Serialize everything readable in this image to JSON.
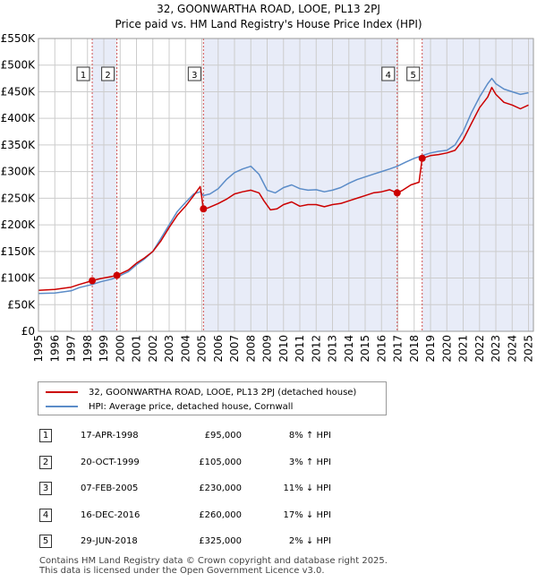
{
  "chart_data": {
    "type": "line",
    "title": "32, GOONWARTHA ROAD, LOOE, PL13 2PJ",
    "subtitle": "Price paid vs. HM Land Registry's House Price Index (HPI)",
    "xlabel": "",
    "ylabel": "",
    "xlim": [
      1995,
      2025.3
    ],
    "ylim": [
      0,
      550000
    ],
    "y_ticks": [
      {
        "value": 0,
        "label": "£0"
      },
      {
        "value": 50000,
        "label": "£50K"
      },
      {
        "value": 100000,
        "label": "£100K"
      },
      {
        "value": 150000,
        "label": "£150K"
      },
      {
        "value": 200000,
        "label": "£200K"
      },
      {
        "value": 250000,
        "label": "£250K"
      },
      {
        "value": 300000,
        "label": "£300K"
      },
      {
        "value": 350000,
        "label": "£350K"
      },
      {
        "value": 400000,
        "label": "£400K"
      },
      {
        "value": 450000,
        "label": "£450K"
      },
      {
        "value": 500000,
        "label": "£500K"
      },
      {
        "value": 550000,
        "label": "£550K"
      }
    ],
    "x_ticks": [
      "1995",
      "1996",
      "1997",
      "1998",
      "1999",
      "2000",
      "2001",
      "2002",
      "2003",
      "2004",
      "2005",
      "2006",
      "2007",
      "2008",
      "2009",
      "2010",
      "2011",
      "2012",
      "2013",
      "2014",
      "2015",
      "2016",
      "2017",
      "2018",
      "2019",
      "2020",
      "2021",
      "2022",
      "2023",
      "2024",
      "2025"
    ],
    "shaded_periods": [
      [
        1998.29,
        1999.8
      ],
      [
        2005.1,
        2016.96
      ],
      [
        2018.49,
        2025.3
      ]
    ],
    "series": [
      {
        "name": "32, GOONWARTHA ROAD, LOOE, PL13 2PJ (detached house)",
        "color": "#cc0000",
        "points": [
          [
            1995,
            77000
          ],
          [
            1996,
            78500
          ],
          [
            1997,
            83000
          ],
          [
            1997.5,
            88000
          ],
          [
            1998.29,
            95000
          ],
          [
            1998.8,
            99000
          ],
          [
            1999.5,
            103000
          ],
          [
            1999.8,
            105000
          ],
          [
            2000.5,
            115000
          ],
          [
            2001,
            128000
          ],
          [
            2001.5,
            138000
          ],
          [
            2002,
            150000
          ],
          [
            2002.5,
            170000
          ],
          [
            2003,
            195000
          ],
          [
            2003.5,
            218000
          ],
          [
            2004,
            235000
          ],
          [
            2004.5,
            255000
          ],
          [
            2004.9,
            272000
          ],
          [
            2005.1,
            230000
          ],
          [
            2005.4,
            232000
          ],
          [
            2006,
            240000
          ],
          [
            2006.5,
            248000
          ],
          [
            2007,
            258000
          ],
          [
            2007.5,
            262000
          ],
          [
            2008,
            265000
          ],
          [
            2008.5,
            260000
          ],
          [
            2008.8,
            245000
          ],
          [
            2009.2,
            228000
          ],
          [
            2009.6,
            230000
          ],
          [
            2010,
            238000
          ],
          [
            2010.5,
            243000
          ],
          [
            2011,
            235000
          ],
          [
            2011.5,
            238000
          ],
          [
            2012,
            238000
          ],
          [
            2012.5,
            234000
          ],
          [
            2013,
            238000
          ],
          [
            2013.5,
            240000
          ],
          [
            2014,
            245000
          ],
          [
            2014.5,
            250000
          ],
          [
            2015,
            255000
          ],
          [
            2015.5,
            260000
          ],
          [
            2016,
            262000
          ],
          [
            2016.5,
            266000
          ],
          [
            2016.96,
            260000
          ],
          [
            2017.3,
            265000
          ],
          [
            2017.8,
            275000
          ],
          [
            2018.3,
            280000
          ],
          [
            2018.49,
            325000
          ],
          [
            2019,
            330000
          ],
          [
            2019.5,
            332000
          ],
          [
            2020,
            335000
          ],
          [
            2020.5,
            340000
          ],
          [
            2021,
            360000
          ],
          [
            2021.5,
            390000
          ],
          [
            2022,
            420000
          ],
          [
            2022.5,
            440000
          ],
          [
            2022.75,
            458000
          ],
          [
            2023,
            445000
          ],
          [
            2023.5,
            430000
          ],
          [
            2024,
            425000
          ],
          [
            2024.5,
            418000
          ],
          [
            2025,
            425000
          ]
        ]
      },
      {
        "name": "HPI: Average price, detached house, Cornwall",
        "color": "#5b8cc8",
        "points": [
          [
            1995,
            71000
          ],
          [
            1996,
            72000
          ],
          [
            1997,
            76000
          ],
          [
            1997.5,
            82000
          ],
          [
            1998.29,
            88000
          ],
          [
            1998.8,
            93000
          ],
          [
            1999.5,
            98000
          ],
          [
            1999.8,
            102000
          ],
          [
            2000.5,
            112000
          ],
          [
            2001,
            125000
          ],
          [
            2001.5,
            136000
          ],
          [
            2002,
            150000
          ],
          [
            2002.5,
            175000
          ],
          [
            2003,
            200000
          ],
          [
            2003.5,
            225000
          ],
          [
            2004,
            242000
          ],
          [
            2004.5,
            258000
          ],
          [
            2004.9,
            262000
          ],
          [
            2005.1,
            255000
          ],
          [
            2005.5,
            258000
          ],
          [
            2006,
            268000
          ],
          [
            2006.5,
            285000
          ],
          [
            2007,
            298000
          ],
          [
            2007.5,
            305000
          ],
          [
            2008,
            310000
          ],
          [
            2008.5,
            295000
          ],
          [
            2009,
            265000
          ],
          [
            2009.5,
            260000
          ],
          [
            2010,
            270000
          ],
          [
            2010.5,
            275000
          ],
          [
            2011,
            268000
          ],
          [
            2011.5,
            265000
          ],
          [
            2012,
            266000
          ],
          [
            2012.5,
            262000
          ],
          [
            2013,
            265000
          ],
          [
            2013.5,
            270000
          ],
          [
            2014,
            278000
          ],
          [
            2014.5,
            285000
          ],
          [
            2015,
            290000
          ],
          [
            2015.5,
            295000
          ],
          [
            2016,
            300000
          ],
          [
            2016.5,
            305000
          ],
          [
            2016.96,
            310000
          ],
          [
            2017.5,
            318000
          ],
          [
            2018,
            325000
          ],
          [
            2018.49,
            330000
          ],
          [
            2019,
            335000
          ],
          [
            2019.5,
            338000
          ],
          [
            2020,
            340000
          ],
          [
            2020.5,
            350000
          ],
          [
            2021,
            375000
          ],
          [
            2021.5,
            410000
          ],
          [
            2022,
            440000
          ],
          [
            2022.5,
            465000
          ],
          [
            2022.75,
            475000
          ],
          [
            2023,
            465000
          ],
          [
            2023.5,
            455000
          ],
          [
            2024,
            450000
          ],
          [
            2024.5,
            445000
          ],
          [
            2025,
            448000
          ]
        ]
      }
    ],
    "sales": [
      {
        "num": "1",
        "x": 1998.29,
        "price": 95000,
        "date": "17-APR-1998",
        "price_label": "£95,000",
        "hpi": "8% ↑ HPI"
      },
      {
        "num": "2",
        "x": 1999.8,
        "price": 105000,
        "date": "20-OCT-1999",
        "price_label": "£105,000",
        "hpi": "3% ↑ HPI"
      },
      {
        "num": "3",
        "x": 2005.1,
        "price": 230000,
        "date": "07-FEB-2005",
        "price_label": "£230,000",
        "hpi": "11% ↓ HPI"
      },
      {
        "num": "4",
        "x": 2016.96,
        "price": 260000,
        "date": "16-DEC-2016",
        "price_label": "£260,000",
        "hpi": "17% ↓ HPI"
      },
      {
        "num": "5",
        "x": 2018.49,
        "price": 325000,
        "date": "29-JUN-2018",
        "price_label": "£325,000",
        "hpi": "2% ↓ HPI"
      }
    ]
  },
  "legend": {
    "property": "32, GOONWARTHA ROAD, LOOE, PL13 2PJ (detached house)",
    "hpi": "HPI: Average price, detached house, Cornwall"
  },
  "footer": {
    "line1": "Contains HM Land Registry data © Crown copyright and database right 2025.",
    "line2": "This data is licensed under the Open Government Licence v3.0."
  },
  "colors": {
    "property_line": "#cc0000",
    "hpi_line": "#5b8cc8",
    "shade": "#e8ecf8",
    "grid": "#cccccc"
  }
}
